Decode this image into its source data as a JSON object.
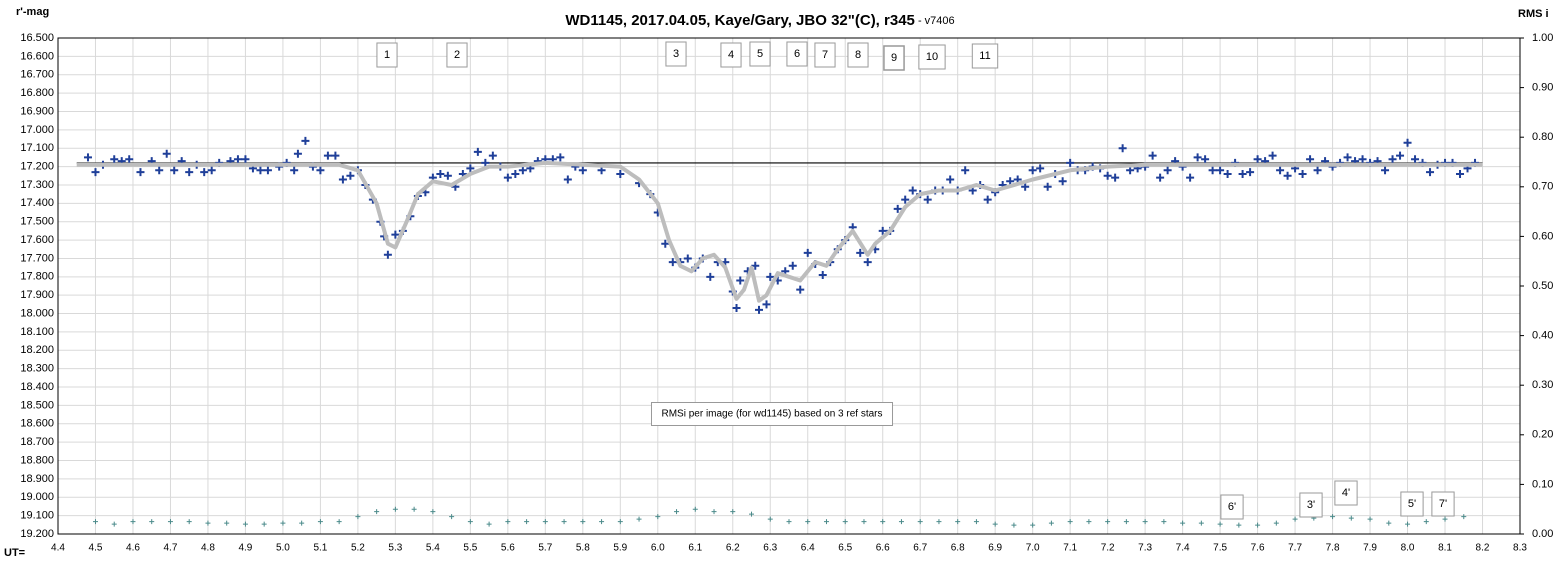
{
  "chart_data": {
    "type": "scatter",
    "title": "WD1145, 2017.04.05,  Kaye/Gary,  JBO 32\"(C),  r345",
    "subtitle": " - v7406",
    "y_label": "r'-mag",
    "y2_label": "RMS i",
    "x_label": "UT=",
    "xlim": [
      4.4,
      8.3
    ],
    "ylim": [
      19.2,
      16.5
    ],
    "y2lim": [
      0,
      1
    ],
    "grid": true,
    "xticks": [
      4.4,
      4.5,
      4.6,
      4.7,
      4.8,
      4.9,
      {
        "value": 5.0,
        "label": "5.0"
      },
      5.1,
      5.2,
      5.3,
      5.4,
      5.5,
      5.6,
      5.7,
      5.8,
      5.9,
      {
        "value": 6.0,
        "label": "6.0"
      },
      6.1,
      6.2,
      6.3,
      6.4,
      6.5,
      6.6,
      6.7,
      6.8,
      6.9,
      {
        "value": 7.0,
        "label": "7.0"
      },
      7.1,
      7.2,
      7.3,
      7.4,
      7.5,
      7.6,
      7.7,
      7.8,
      7.9,
      {
        "value": 8.0,
        "label": "8.0"
      },
      8.1,
      8.2,
      8.3
    ],
    "yticks": [
      {
        "value": 16.5,
        "label": "16.500"
      },
      {
        "value": 16.6,
        "label": "16.600"
      },
      {
        "value": 16.7,
        "label": "16.700"
      },
      {
        "value": 16.8,
        "label": "16.800"
      },
      {
        "value": 16.9,
        "label": "16.900"
      },
      {
        "value": 17.0,
        "label": "17.000"
      },
      {
        "value": 17.1,
        "label": "17.100"
      },
      {
        "value": 17.2,
        "label": "17.200"
      },
      {
        "value": 17.3,
        "label": "17.300"
      },
      {
        "value": 17.4,
        "label": "17.400"
      },
      {
        "value": 17.5,
        "label": "17.500"
      },
      {
        "value": 17.6,
        "label": "17.600"
      },
      {
        "value": 17.7,
        "label": "17.700"
      },
      {
        "value": 17.8,
        "label": "17.800"
      },
      {
        "value": 17.9,
        "label": "17.900"
      },
      {
        "value": 18.0,
        "label": "18.000"
      },
      {
        "value": 18.1,
        "label": "18.100"
      },
      {
        "value": 18.2,
        "label": "18.200"
      },
      {
        "value": 18.3,
        "label": "18.300"
      },
      {
        "value": 18.4,
        "label": "18.400"
      },
      {
        "value": 18.5,
        "label": "18.500"
      },
      {
        "value": 18.6,
        "label": "18.600"
      },
      {
        "value": 18.7,
        "label": "18.700"
      },
      {
        "value": 18.8,
        "label": "18.800"
      },
      {
        "value": 18.9,
        "label": "18.900"
      },
      {
        "value": 19.0,
        "label": "19.000"
      },
      {
        "value": 19.1,
        "label": "19.100"
      },
      {
        "value": 19.2,
        "label": "19.200"
      }
    ],
    "y2ticks": [
      {
        "value": 0,
        "label": "0.00"
      },
      {
        "value": 0.1,
        "label": "0.10"
      },
      {
        "value": 0.2,
        "label": "0.20"
      },
      {
        "value": 0.3,
        "label": "0.30"
      },
      {
        "value": 0.4,
        "label": "0.40"
      },
      {
        "value": 0.5,
        "label": "0.50"
      },
      {
        "value": 0.6,
        "label": "0.60"
      },
      {
        "value": 0.7,
        "label": "0.70"
      },
      {
        "value": 0.8,
        "label": "0.80"
      },
      {
        "value": 0.9,
        "label": "0.90"
      },
      {
        "value": 1,
        "label": "1.00"
      }
    ],
    "reference_line": {
      "value": 17.18,
      "xrange": [
        4.45,
        8.2
      ],
      "color": "#000000"
    },
    "series": [
      {
        "color": "#1f3f99",
        "marker": "plus",
        "x": [
          4.48,
          4.5,
          4.52,
          4.55,
          4.57,
          4.59,
          4.62,
          4.65,
          4.67,
          4.69,
          4.71,
          4.73,
          4.75,
          4.77,
          4.79,
          4.81,
          4.83,
          4.86,
          4.88,
          4.9,
          4.92,
          4.94,
          4.96,
          4.99,
          5.01,
          5.03,
          5.04,
          5.06,
          5.08,
          5.1,
          5.12,
          5.14,
          5.16,
          5.18,
          5.2,
          5.22,
          5.24,
          5.26,
          5.27,
          5.28,
          5.3,
          5.32,
          5.34,
          5.36,
          5.38,
          5.4,
          5.42,
          5.44,
          5.46,
          5.48,
          5.5,
          5.52,
          5.54,
          5.56,
          5.58,
          5.6,
          5.62,
          5.64,
          5.66,
          5.68,
          5.7,
          5.72,
          5.74,
          5.76,
          5.78,
          5.8,
          5.85,
          5.9,
          5.95,
          5.98,
          6.0,
          6.02,
          6.04,
          6.06,
          6.08,
          6.1,
          6.12,
          6.14,
          6.16,
          6.18,
          6.2,
          6.21,
          6.22,
          6.24,
          6.26,
          6.27,
          6.29,
          6.3,
          6.32,
          6.34,
          6.36,
          6.38,
          6.4,
          6.42,
          6.44,
          6.46,
          6.48,
          6.5,
          6.52,
          6.54,
          6.56,
          6.58,
          6.6,
          6.62,
          6.64,
          6.66,
          6.68,
          6.7,
          6.72,
          6.74,
          6.76,
          6.78,
          6.8,
          6.82,
          6.84,
          6.86,
          6.88,
          6.9,
          6.92,
          6.94,
          6.96,
          6.98,
          7.0,
          7.02,
          7.04,
          7.06,
          7.08,
          7.1,
          7.12,
          7.14,
          7.16,
          7.18,
          7.2,
          7.22,
          7.24,
          7.26,
          7.28,
          7.3,
          7.32,
          7.34,
          7.36,
          7.38,
          7.4,
          7.42,
          7.44,
          7.46,
          7.48,
          7.5,
          7.52,
          7.54,
          7.56,
          7.58,
          7.6,
          7.62,
          7.64,
          7.66,
          7.68,
          7.7,
          7.72,
          7.74,
          7.76,
          7.78,
          7.8,
          7.82,
          7.84,
          7.86,
          7.88,
          7.9,
          7.92,
          7.94,
          7.96,
          7.98,
          8.0,
          8.02,
          8.04,
          8.06,
          8.08,
          8.1,
          8.12,
          8.14,
          8.16,
          8.18
        ],
        "values": [
          17.15,
          17.23,
          17.19,
          17.16,
          17.17,
          17.16,
          17.23,
          17.17,
          17.22,
          17.13,
          17.22,
          17.17,
          17.23,
          17.19,
          17.23,
          17.22,
          17.18,
          17.17,
          17.16,
          17.16,
          17.21,
          17.22,
          17.22,
          17.2,
          17.18,
          17.22,
          17.13,
          17.06,
          17.2,
          17.22,
          17.14,
          17.14,
          17.27,
          17.25,
          17.22,
          17.3,
          17.38,
          17.5,
          17.58,
          17.68,
          17.57,
          17.55,
          17.47,
          17.36,
          17.34,
          17.26,
          17.24,
          17.25,
          17.31,
          17.24,
          17.21,
          17.12,
          17.18,
          17.14,
          17.2,
          17.26,
          17.24,
          17.22,
          17.21,
          17.17,
          17.16,
          17.16,
          17.15,
          17.27,
          17.2,
          17.22,
          17.22,
          17.24,
          17.29,
          17.35,
          17.45,
          17.62,
          17.72,
          17.72,
          17.7,
          17.75,
          17.7,
          17.8,
          17.72,
          17.72,
          17.88,
          17.97,
          17.82,
          17.77,
          17.74,
          17.98,
          17.95,
          17.8,
          17.82,
          17.77,
          17.74,
          17.87,
          17.67,
          17.73,
          17.79,
          17.72,
          17.65,
          17.6,
          17.53,
          17.67,
          17.72,
          17.65,
          17.55,
          17.55,
          17.43,
          17.38,
          17.33,
          17.35,
          17.38,
          17.33,
          17.33,
          17.27,
          17.33,
          17.22,
          17.33,
          17.3,
          17.38,
          17.34,
          17.3,
          17.28,
          17.27,
          17.31,
          17.22,
          17.21,
          17.31,
          17.24,
          17.28,
          17.18,
          17.22,
          17.22,
          17.2,
          17.21,
          17.25,
          17.26,
          17.1,
          17.22,
          17.21,
          17.2,
          17.14,
          17.26,
          17.22,
          17.17,
          17.2,
          17.26,
          17.15,
          17.16,
          17.22,
          17.22,
          17.24,
          17.18,
          17.24,
          17.23,
          17.16,
          17.17,
          17.14,
          17.22,
          17.25,
          17.21,
          17.24,
          17.16,
          17.22,
          17.17,
          17.2,
          17.18,
          17.15,
          17.17,
          17.16,
          17.18,
          17.17,
          17.22,
          17.16,
          17.14,
          17.07,
          17.16,
          17.18,
          17.23,
          17.19,
          17.18,
          17.18,
          17.24,
          17.21,
          17.18
        ]
      },
      {
        "color": "#bdbdbd",
        "marker": "line",
        "x": [
          4.45,
          5.15,
          5.2,
          5.25,
          5.28,
          5.3,
          5.33,
          5.36,
          5.4,
          5.45,
          5.5,
          5.55,
          5.6,
          5.7,
          5.9,
          5.95,
          6.0,
          6.03,
          6.06,
          6.09,
          6.12,
          6.15,
          6.18,
          6.21,
          6.23,
          6.25,
          6.27,
          6.29,
          6.32,
          6.35,
          6.38,
          6.42,
          6.45,
          6.48,
          6.52,
          6.56,
          6.58,
          6.62,
          6.66,
          6.7,
          6.75,
          6.8,
          6.85,
          6.9,
          7.0,
          7.1,
          7.2,
          7.3,
          8.2
        ],
        "values": [
          17.19,
          17.19,
          17.22,
          17.4,
          17.62,
          17.64,
          17.5,
          17.35,
          17.28,
          17.3,
          17.24,
          17.2,
          17.2,
          17.18,
          17.2,
          17.27,
          17.4,
          17.6,
          17.74,
          17.77,
          17.7,
          17.68,
          17.75,
          17.92,
          17.87,
          17.75,
          17.93,
          17.9,
          17.78,
          17.8,
          17.82,
          17.72,
          17.74,
          17.65,
          17.55,
          17.68,
          17.62,
          17.55,
          17.42,
          17.35,
          17.33,
          17.33,
          17.3,
          17.33,
          17.27,
          17.22,
          17.2,
          17.19,
          17.19
        ]
      },
      {
        "color": "#4a8a8a",
        "marker": "small-plus",
        "axis": "y2",
        "x": [
          4.5,
          4.55,
          4.6,
          4.65,
          4.7,
          4.75,
          4.8,
          4.85,
          4.9,
          4.95,
          5.0,
          5.05,
          5.1,
          5.15,
          5.2,
          5.25,
          5.3,
          5.35,
          5.4,
          5.45,
          5.5,
          5.55,
          5.6,
          5.65,
          5.7,
          5.75,
          5.8,
          5.85,
          5.9,
          5.95,
          6.0,
          6.05,
          6.1,
          6.15,
          6.2,
          6.25,
          6.3,
          6.35,
          6.4,
          6.45,
          6.5,
          6.55,
          6.6,
          6.65,
          6.7,
          6.75,
          6.8,
          6.85,
          6.9,
          6.95,
          7.0,
          7.05,
          7.1,
          7.15,
          7.2,
          7.25,
          7.3,
          7.35,
          7.4,
          7.45,
          7.5,
          7.55,
          7.6,
          7.65,
          7.7,
          7.75,
          7.8,
          7.85,
          7.9,
          7.95,
          8.0,
          8.05,
          8.1,
          8.15
        ],
        "values": [
          0.025,
          0.02,
          0.025,
          0.025,
          0.025,
          0.025,
          0.022,
          0.022,
          0.02,
          0.02,
          0.022,
          0.022,
          0.025,
          0.025,
          0.035,
          0.045,
          0.05,
          0.05,
          0.045,
          0.035,
          0.025,
          0.02,
          0.025,
          0.025,
          0.025,
          0.025,
          0.025,
          0.025,
          0.025,
          0.03,
          0.035,
          0.045,
          0.05,
          0.045,
          0.045,
          0.04,
          0.03,
          0.025,
          0.025,
          0.025,
          0.025,
          0.025,
          0.025,
          0.025,
          0.025,
          0.025,
          0.025,
          0.025,
          0.02,
          0.018,
          0.018,
          0.022,
          0.025,
          0.025,
          0.025,
          0.025,
          0.025,
          0.025,
          0.022,
          0.022,
          0.02,
          0.018,
          0.018,
          0.022,
          0.03,
          0.032,
          0.035,
          0.032,
          0.03,
          0.022,
          0.02,
          0.025,
          0.03,
          0.035
        ]
      }
    ],
    "annotations": [
      "1",
      "2",
      "3",
      "4",
      "5",
      "6",
      "7",
      "8",
      "9",
      "10",
      "11",
      "RMSi per image (for wd1145) based on 3 ref stars",
      "6'",
      "3'",
      "4'",
      "5'",
      "7'"
    ]
  }
}
